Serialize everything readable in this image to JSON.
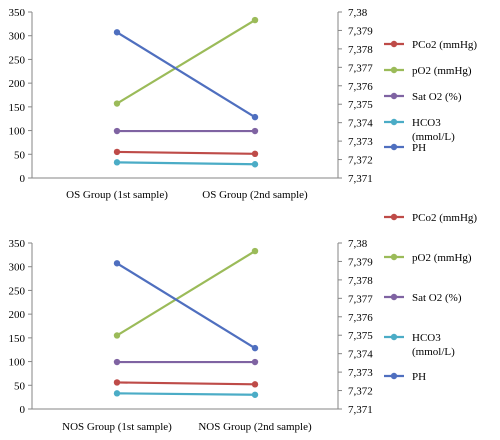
{
  "chart_data": [
    {
      "type": "line",
      "categories": [
        "OS Group (1st sample)",
        "OS Group (2nd sample)"
      ],
      "ylim": [
        0,
        350
      ],
      "y_ticks": [
        "0",
        "50",
        "100",
        "150",
        "200",
        "250",
        "300",
        "350"
      ],
      "y2lim": [
        7.371,
        7.38
      ],
      "y2_ticks": [
        "7,371",
        "7,372",
        "7,373",
        "7,374",
        "7,375",
        "7,376",
        "7,377",
        "7,378",
        "7,379",
        "7,38"
      ],
      "grid": false,
      "legend_position": "right",
      "series": [
        {
          "name": "PCo2 (mmHg)",
          "color": "#be4b48",
          "axis": "left",
          "values": [
            55,
            51
          ]
        },
        {
          "name": "pO2 (mmHg)",
          "color": "#9bbb59",
          "axis": "left",
          "values": [
            157,
            333
          ]
        },
        {
          "name": "Sat O2 (%)",
          "color": "#7f63a2",
          "axis": "left",
          "values": [
            99,
            99
          ]
        },
        {
          "name": "HCO3 (mmol/L)",
          "color": "#4bacc6",
          "axis": "left",
          "values": [
            33,
            29
          ]
        },
        {
          "name": "PH",
          "color": "#4f6fbf",
          "axis": "right",
          "values": [
            7.3789,
            7.3743
          ]
        }
      ]
    },
    {
      "type": "line",
      "categories": [
        "NOS Group (1st sample)",
        "NOS Group (2nd sample)"
      ],
      "ylim": [
        0,
        350
      ],
      "y_ticks": [
        "0",
        "50",
        "100",
        "150",
        "200",
        "250",
        "300",
        "350"
      ],
      "y2lim": [
        7.371,
        7.38
      ],
      "y2_ticks": [
        "7,371",
        "7,372",
        "7,373",
        "7,374",
        "7,375",
        "7,376",
        "7,377",
        "7,378",
        "7,379",
        "7,38"
      ],
      "grid": false,
      "legend_position": "right",
      "series": [
        {
          "name": "PCo2 (mmHg)",
          "color": "#be4b48",
          "axis": "left",
          "values": [
            56,
            52
          ]
        },
        {
          "name": "pO2 (mmHg)",
          "color": "#9bbb59",
          "axis": "left",
          "values": [
            155,
            333
          ]
        },
        {
          "name": "Sat O2 (%)",
          "color": "#7f63a2",
          "axis": "left",
          "values": [
            99,
            99
          ]
        },
        {
          "name": "HCO3 (mmol/L)",
          "color": "#4bacc6",
          "axis": "left",
          "values": [
            33,
            30
          ]
        },
        {
          "name": "PH",
          "color": "#4f6fbf",
          "axis": "right",
          "values": [
            7.3789,
            7.3743
          ]
        }
      ]
    }
  ]
}
